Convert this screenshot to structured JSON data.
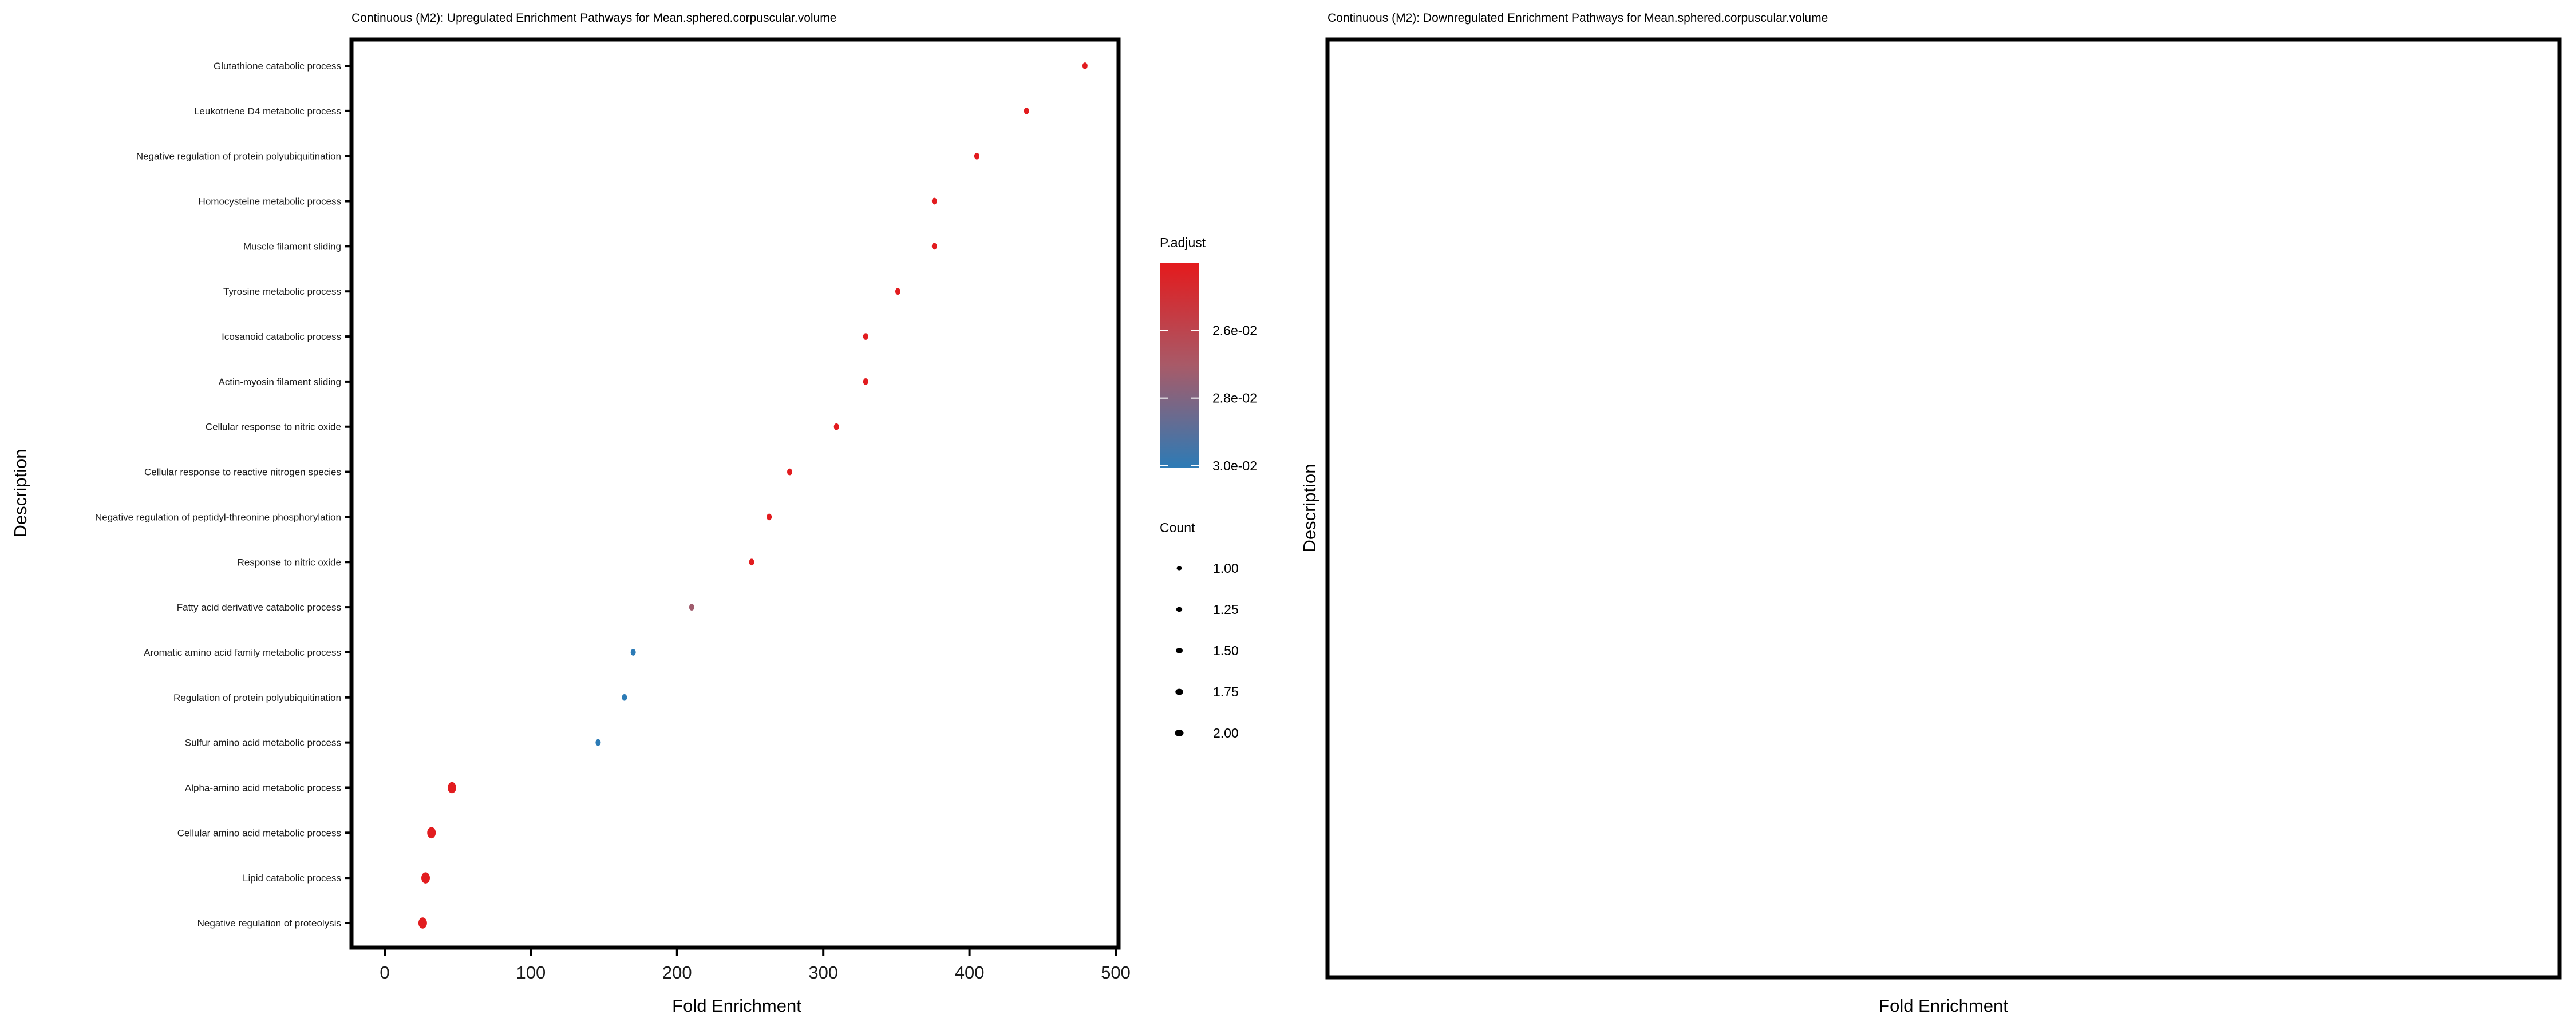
{
  "chart_data": [
    {
      "type": "scatter",
      "title": "Continuous (M2): Upregulated Enrichment Pathways for Mean.sphered.corpuscular.volume",
      "xlabel": "Fold Enrichment",
      "ylabel": "Description",
      "xlim": [
        -25,
        505
      ],
      "xticks": [
        "0",
        "100",
        "200",
        "300",
        "400",
        "500"
      ],
      "grid": false,
      "legend_position": "right",
      "categories": [
        "Glutathione catabolic process",
        "Leukotriene D4 metabolic process",
        "Negative regulation of protein polyubiquitination",
        "Homocysteine metabolic process",
        "Muscle filament sliding",
        "Tyrosine metabolic process",
        "Icosanoid catabolic process",
        "Actin-myosin filament sliding",
        "Cellular response to nitric oxide",
        "Cellular response to reactive nitrogen species",
        "Negative regulation of peptidyl-threonine phosphorylation",
        "Response to nitric oxide",
        "Fatty acid derivative catabolic process",
        "Aromatic amino acid family metabolic process",
        "Regulation of protein polyubiquitination",
        "Sulfur amino acid metabolic process",
        "Alpha-amino acid metabolic process",
        "Cellular amino acid metabolic process",
        "Lipid catabolic process",
        "Negative regulation of proteolysis"
      ],
      "fold_enrichment": [
        479,
        439,
        405,
        376,
        376,
        351,
        329,
        329,
        309,
        277,
        263,
        251,
        210,
        170,
        164,
        146,
        46,
        32,
        28,
        26
      ],
      "p_adjust": [
        0.0241,
        0.0241,
        0.0241,
        0.0241,
        0.0241,
        0.0241,
        0.0241,
        0.0241,
        0.0241,
        0.0241,
        0.0241,
        0.0241,
        0.0272,
        0.03,
        0.03,
        0.03,
        0.0241,
        0.0241,
        0.0241,
        0.0241
      ],
      "count": [
        1,
        1,
        1,
        1,
        1,
        1,
        1,
        1,
        1,
        1,
        1,
        1,
        1,
        1,
        1,
        1,
        2,
        2,
        2,
        2
      ],
      "color_legend": {
        "title": "P.adjust",
        "range": [
          0.024,
          0.03
        ],
        "ticks": [
          0.026,
          0.028,
          0.03
        ],
        "tick_labels": [
          "2.6e-02",
          "2.8e-02",
          "3.0e-02"
        ],
        "low_color": "#E41A1C",
        "high_color": "#2C7BB6"
      },
      "size_legend": {
        "title": "Count",
        "values": [
          1.0,
          1.25,
          1.5,
          1.75,
          2.0
        ],
        "labels": [
          "1.00",
          "1.25",
          "1.50",
          "1.75",
          "2.00"
        ]
      }
    },
    {
      "type": "scatter",
      "title": "Continuous (M2): Downregulated Enrichment Pathways for Mean.sphered.corpuscular.volume",
      "xlabel": "Fold Enrichment",
      "ylabel": "Description",
      "categories": [],
      "fold_enrichment": []
    }
  ]
}
